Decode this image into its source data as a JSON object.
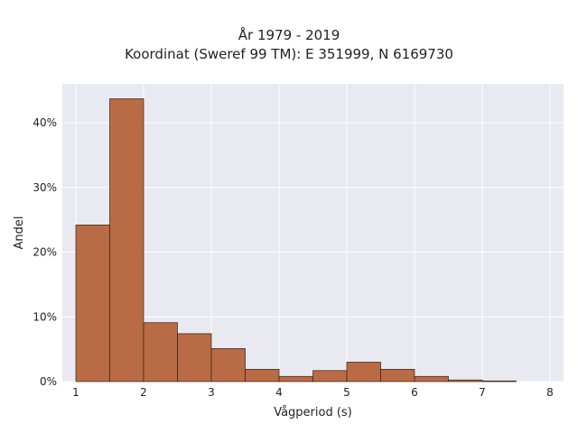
{
  "chart_data": {
    "type": "bar",
    "title": "År 1979 - 2019",
    "subtitle": "Koordinat (Sweref 99 TM): E 351999, N 6169730",
    "xlabel": "Vågperiod (s)",
    "ylabel": "Andel",
    "bin_width": 0.5,
    "bin_edges": [
      1,
      1.5,
      2,
      2.5,
      3,
      3.5,
      4,
      4.5,
      5,
      5.5,
      6,
      6.5,
      7,
      7.5
    ],
    "values": [
      24.2,
      43.7,
      9.1,
      7.4,
      5.1,
      1.9,
      0.8,
      1.7,
      3.0,
      1.9,
      0.8,
      0.25,
      0.1
    ],
    "xlim": [
      0.8,
      8.2
    ],
    "ylim": [
      0,
      46
    ],
    "xticks": [
      1,
      2,
      3,
      4,
      5,
      6,
      7,
      8
    ],
    "yticks": [
      0,
      10,
      20,
      30,
      40
    ],
    "ytick_labels": [
      "0%",
      "10%",
      "20%",
      "30%",
      "40%"
    ],
    "grid": true,
    "colors": {
      "bar_fill": "#b5643a",
      "bar_stroke": "#3a2216",
      "plot_bg": "#e9e9f1",
      "grid": "#ffffff"
    }
  }
}
